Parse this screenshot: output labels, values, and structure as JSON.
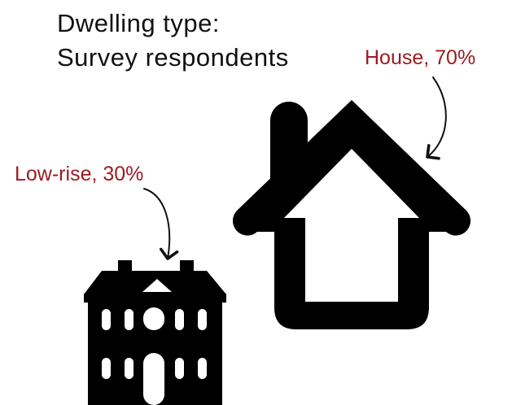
{
  "title": {
    "line1": "Dwelling type:",
    "line2": "Survey respondents"
  },
  "colors": {
    "label": "#9b1b23",
    "icon": "#000000",
    "text": "#111111"
  },
  "chart_data": {
    "type": "pictogram",
    "title": "Dwelling type: Survey respondents",
    "categories": [
      "House",
      "Low-rise"
    ],
    "values": [
      70,
      30
    ],
    "unit": "%",
    "icons": [
      "house-icon",
      "low-rise-building-icon"
    ],
    "labels": [
      "House, 70%",
      "Low-rise, 30%"
    ]
  }
}
